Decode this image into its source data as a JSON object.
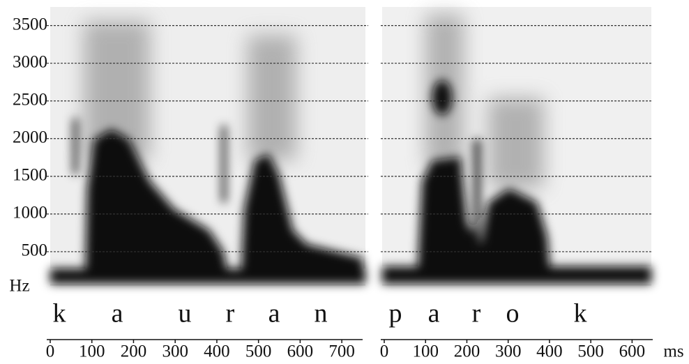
{
  "chart_data": [
    {
      "type": "spectrogram",
      "ylabel": "Hz",
      "ylim": [
        0,
        3700
      ],
      "yticks": [
        500,
        1000,
        1500,
        2000,
        2500,
        3000,
        3500
      ],
      "xlim": [
        0,
        750
      ],
      "xticks": [
        0,
        100,
        200,
        300,
        400,
        500,
        600,
        700
      ],
      "segments": [
        "k",
        "a",
        "u",
        "r",
        "a",
        "n"
      ]
    },
    {
      "type": "spectrogram",
      "xlabel": "ms",
      "ylim": [
        0,
        3700
      ],
      "xlim": [
        0,
        650
      ],
      "xticks": [
        0,
        100,
        200,
        300,
        400,
        500,
        600
      ],
      "segments": [
        "p",
        "a",
        "r",
        "o",
        "k"
      ]
    }
  ]
}
